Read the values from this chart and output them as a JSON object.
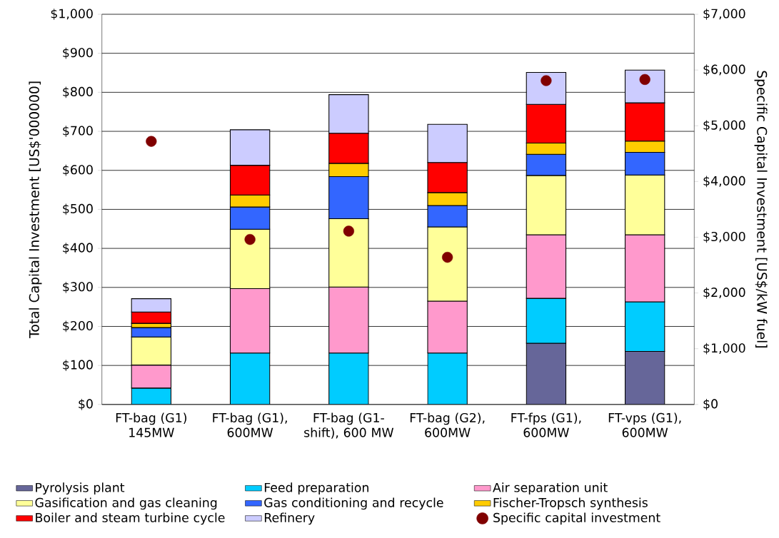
{
  "chart_data": {
    "type": "bar",
    "stacked": true,
    "xlabel": null,
    "categories": [
      "FT-bag (G1) 145MW",
      "FT-bag (G1), 600MW",
      "FT-bag (G1-shift), 600 MW",
      "FT-bag (G2), 600MW",
      "FT-fps (G1), 600MW",
      "FT-vps (G1), 600MW"
    ],
    "ylabel": "Total Capital Investment [US$'000000]",
    "y2label": "Specific Capital Investment [US$/kW fuel]",
    "ylim": [
      0,
      1000
    ],
    "yticks": [
      {
        "value": 0,
        "label": "$0"
      },
      {
        "value": 100,
        "label": "$100"
      },
      {
        "value": 200,
        "label": "$200"
      },
      {
        "value": 300,
        "label": "$300"
      },
      {
        "value": 400,
        "label": "$400"
      },
      {
        "value": 500,
        "label": "$500"
      },
      {
        "value": 600,
        "label": "$600"
      },
      {
        "value": 700,
        "label": "$700"
      },
      {
        "value": 800,
        "label": "$800"
      },
      {
        "value": 900,
        "label": "$900"
      },
      {
        "value": 1000,
        "label": "$1,000"
      }
    ],
    "y2lim": [
      0,
      7000
    ],
    "y2ticks": [
      {
        "value": 0,
        "label": "$0"
      },
      {
        "value": 1000,
        "label": "$1,000"
      },
      {
        "value": 2000,
        "label": "$2,000"
      },
      {
        "value": 3000,
        "label": "$3,000"
      },
      {
        "value": 4000,
        "label": "$4,000"
      },
      {
        "value": 5000,
        "label": "$5,000"
      },
      {
        "value": 6000,
        "label": "$6,000"
      },
      {
        "value": 7000,
        "label": "$7,000"
      }
    ],
    "grid": "y",
    "legend": "bottom",
    "series": [
      {
        "name": "Pyrolysis plant",
        "color": "#666699",
        "values": [
          null,
          null,
          null,
          null,
          157,
          136
        ]
      },
      {
        "name": "Feed preparation",
        "color": "#00ccff",
        "values": [
          42,
          132,
          132,
          132,
          115,
          127
        ]
      },
      {
        "name": "Air separation unit",
        "color": "#ff99cc",
        "values": [
          59,
          165,
          169,
          133,
          163,
          172
        ]
      },
      {
        "name": "Gasification and gas cleaning",
        "color": "#ffff99",
        "values": [
          72,
          152,
          175,
          190,
          152,
          153
        ]
      },
      {
        "name": "Gas conditioning and recycle",
        "color": "#3366ff",
        "values": [
          24,
          57,
          108,
          55,
          54,
          58
        ]
      },
      {
        "name": "Fischer-Tropsch synthesis",
        "color": "#ffcc00",
        "values": [
          11,
          31,
          34,
          33,
          29,
          29
        ]
      },
      {
        "name": "Boiler and steam turbine cycle",
        "color": "#ff0000",
        "values": [
          29,
          76,
          77,
          77,
          99,
          98
        ]
      },
      {
        "name": "Refinery",
        "color": "#ccccff",
        "values": [
          34,
          91,
          99,
          98,
          82,
          84
        ]
      },
      {
        "name": "Specific capital investment",
        "color": "#800000",
        "type": "scatter",
        "axis": "y2",
        "marker": "circle",
        "values": [
          4720,
          2960,
          3110,
          2640,
          5810,
          5830
        ]
      }
    ]
  }
}
